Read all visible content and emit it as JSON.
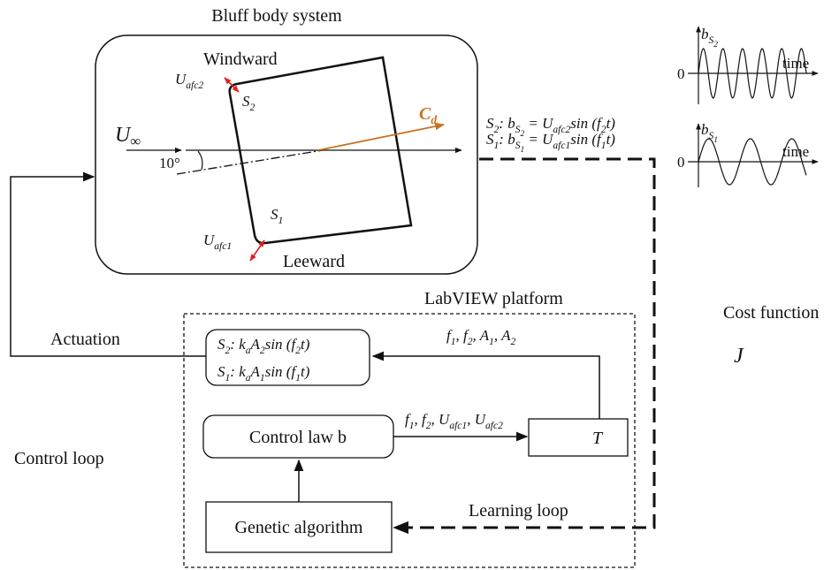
{
  "title": [
    {
      "text": "Bluff body system"
    }
  ],
  "windward": [
    {
      "text": "Windward"
    }
  ],
  "leeward": [
    {
      "text": "Leeward"
    }
  ],
  "u_inf": [
    {
      "text": "U"
    },
    {
      "sub": "∞"
    }
  ],
  "angle": [
    {
      "text": "10°"
    }
  ],
  "cd": [
    {
      "text": "C"
    },
    {
      "sub": "d"
    }
  ],
  "u_afc2": [
    {
      "text": "U"
    },
    {
      "sub": "afc2"
    }
  ],
  "s2": [
    {
      "text": "S"
    },
    {
      "sub": "2"
    }
  ],
  "s1": [
    {
      "text": "S"
    },
    {
      "sub": "1"
    }
  ],
  "u_afc1": [
    {
      "text": "U"
    },
    {
      "sub": "afc1"
    }
  ],
  "eq2": [
    {
      "text": "S"
    },
    {
      "sub": "2"
    },
    {
      "text": ":  b"
    },
    {
      "sub": "S"
    },
    {
      "subsub": "2"
    },
    {
      "text": " = U"
    },
    {
      "sub": "afc2"
    },
    {
      "text": "sin (f"
    },
    {
      "sub": "2"
    },
    {
      "text": "t)"
    }
  ],
  "eq1": [
    {
      "text": "S"
    },
    {
      "sub": "1"
    },
    {
      "text": ":  b"
    },
    {
      "sub": "S"
    },
    {
      "subsub": "1"
    },
    {
      "text": " = U"
    },
    {
      "sub": "afc1"
    },
    {
      "text": "sin (f"
    },
    {
      "sub": "1"
    },
    {
      "text": "t)"
    }
  ],
  "plot2_label": [
    {
      "text": "b"
    },
    {
      "sub": "S"
    },
    {
      "subsub": "2"
    }
  ],
  "plot2_zero": [
    {
      "text": "0"
    }
  ],
  "plot2_time": [
    {
      "text": "time"
    }
  ],
  "plot1_label": [
    {
      "text": "b"
    },
    {
      "sub": "S"
    },
    {
      "subsub": "1"
    }
  ],
  "plot1_zero": [
    {
      "text": "0"
    }
  ],
  "plot1_time": [
    {
      "text": "time"
    }
  ],
  "labview": [
    {
      "text": "LabVIEW platform"
    }
  ],
  "cost_function": [
    {
      "text": "Cost function"
    }
  ],
  "cost": [
    {
      "text": "J"
    }
  ],
  "actuation": [
    {
      "text": "Actuation"
    }
  ],
  "act2": [
    {
      "text": "S"
    },
    {
      "sub": "2"
    },
    {
      "text": ": k"
    },
    {
      "sub": "a"
    },
    {
      "text": "A"
    },
    {
      "sub": "2"
    },
    {
      "text": "sin (f"
    },
    {
      "sub": "2"
    },
    {
      "text": "t)"
    }
  ],
  "act1": [
    {
      "text": "S"
    },
    {
      "sub": "1"
    },
    {
      "text": ": k"
    },
    {
      "sub": "a"
    },
    {
      "text": "A"
    },
    {
      "sub": "1"
    },
    {
      "text": "sin (f"
    },
    {
      "sub": "1"
    },
    {
      "text": "t)"
    }
  ],
  "params_top": [
    {
      "text": "f"
    },
    {
      "sub": "1"
    },
    {
      "text": ",  f"
    },
    {
      "sub": "2"
    },
    {
      "text": ",  A"
    },
    {
      "sub": "1"
    },
    {
      "text": ",  A"
    },
    {
      "sub": "2"
    }
  ],
  "params_mid": [
    {
      "text": "f"
    },
    {
      "sub": "1"
    },
    {
      "text": ", f"
    },
    {
      "sub": "2"
    },
    {
      "text": ", U"
    },
    {
      "sub": "afc1"
    },
    {
      "text": ", U"
    },
    {
      "sub": "afc2"
    }
  ],
  "control_law": [
    {
      "text": "Control law b"
    }
  ],
  "T": [
    {
      "text": "T"
    }
  ],
  "control_loop": [
    {
      "text": "Control loop"
    }
  ],
  "learning_loop": [
    {
      "text": "Learning loop"
    }
  ],
  "genetic": [
    {
      "text": "Genetic algorithm"
    }
  ]
}
